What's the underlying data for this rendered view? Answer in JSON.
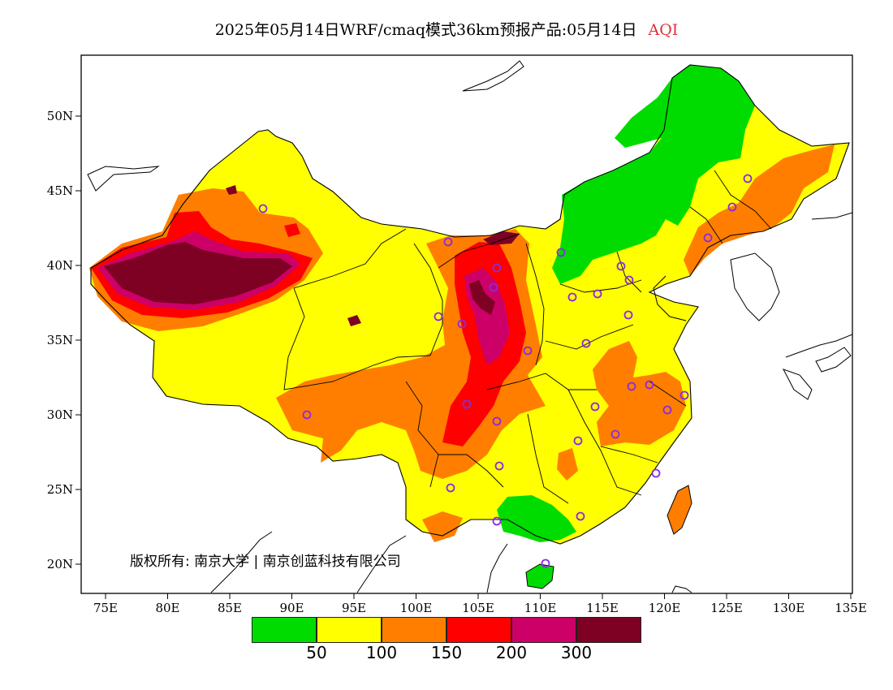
{
  "title": {
    "main": "2025年05月14日WRF/cmaq模式36km预报产品:05月14日",
    "variable": "AQI",
    "variable_color": "#e0303a"
  },
  "axes": {
    "lon_ticks": [
      "75E",
      "80E",
      "85E",
      "90E",
      "95E",
      "100E",
      "105E",
      "110E",
      "115E",
      "120E",
      "125E",
      "130E",
      "135E"
    ],
    "lat_ticks": [
      "50N",
      "45N",
      "40N",
      "35N",
      "30N",
      "25N",
      "20N"
    ]
  },
  "copyright": "版权所有: 南京大学 | 南京创蓝科技有限公司",
  "legend": {
    "colors": [
      "#00dc00",
      "#ffff00",
      "#ff7e00",
      "#ff0000",
      "#cc0066",
      "#7e0023"
    ],
    "labels": [
      "50",
      "100",
      "150",
      "200",
      "300"
    ]
  },
  "map_colors": {
    "good": "#00dc00",
    "moderate": "#ffff00",
    "sensitive": "#ff7e00",
    "unhealthy": "#ff0000",
    "very_unhealthy": "#cc0066",
    "hazardous": "#7e0023",
    "station_marker": "#8a2be2"
  }
}
